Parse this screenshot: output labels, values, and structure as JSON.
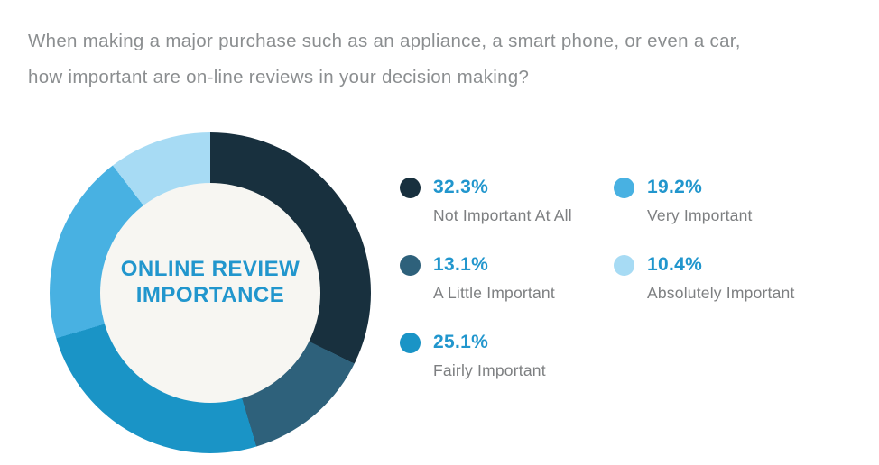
{
  "question": {
    "line1": "When making a major purchase such as an appliance, a smart phone, or even a car,",
    "line2": "how important  are on-line reviews in your decision making?"
  },
  "donut_center": {
    "line1": "ONLINE REVIEW",
    "line2": "IMPORTANCE"
  },
  "chart_data": {
    "type": "pie",
    "donut": true,
    "title": "Online Review Importance",
    "question": "When making a major purchase such as an appliance, a smart phone, or even a car, how important are on-line reviews in your decision making?",
    "start_angle_deg": 0,
    "direction": "clockwise",
    "legend_position": "right",
    "center_label": "ONLINE REVIEW IMPORTANCE",
    "inner_circle_color": "#f7f6f2",
    "accent_text_color": "#2196cd",
    "label_text_color": "#7d7f81",
    "question_text_color": "#8b8e90",
    "segments": [
      {
        "label": "Not Important At All",
        "value": 32.3,
        "pct_text": "32.3%",
        "color": "#18303e"
      },
      {
        "label": "A Little Important",
        "value": 13.1,
        "pct_text": "13.1%",
        "color": "#2e617b"
      },
      {
        "label": "Fairly Important",
        "value": 25.1,
        "pct_text": "25.1%",
        "color": "#1a94c6"
      },
      {
        "label": "Very Important",
        "value": 19.2,
        "pct_text": "19.2%",
        "color": "#48b1e2"
      },
      {
        "label": "Absolutely Important",
        "value": 10.4,
        "pct_text": "10.4%",
        "color": "#a7dbf4"
      }
    ]
  }
}
